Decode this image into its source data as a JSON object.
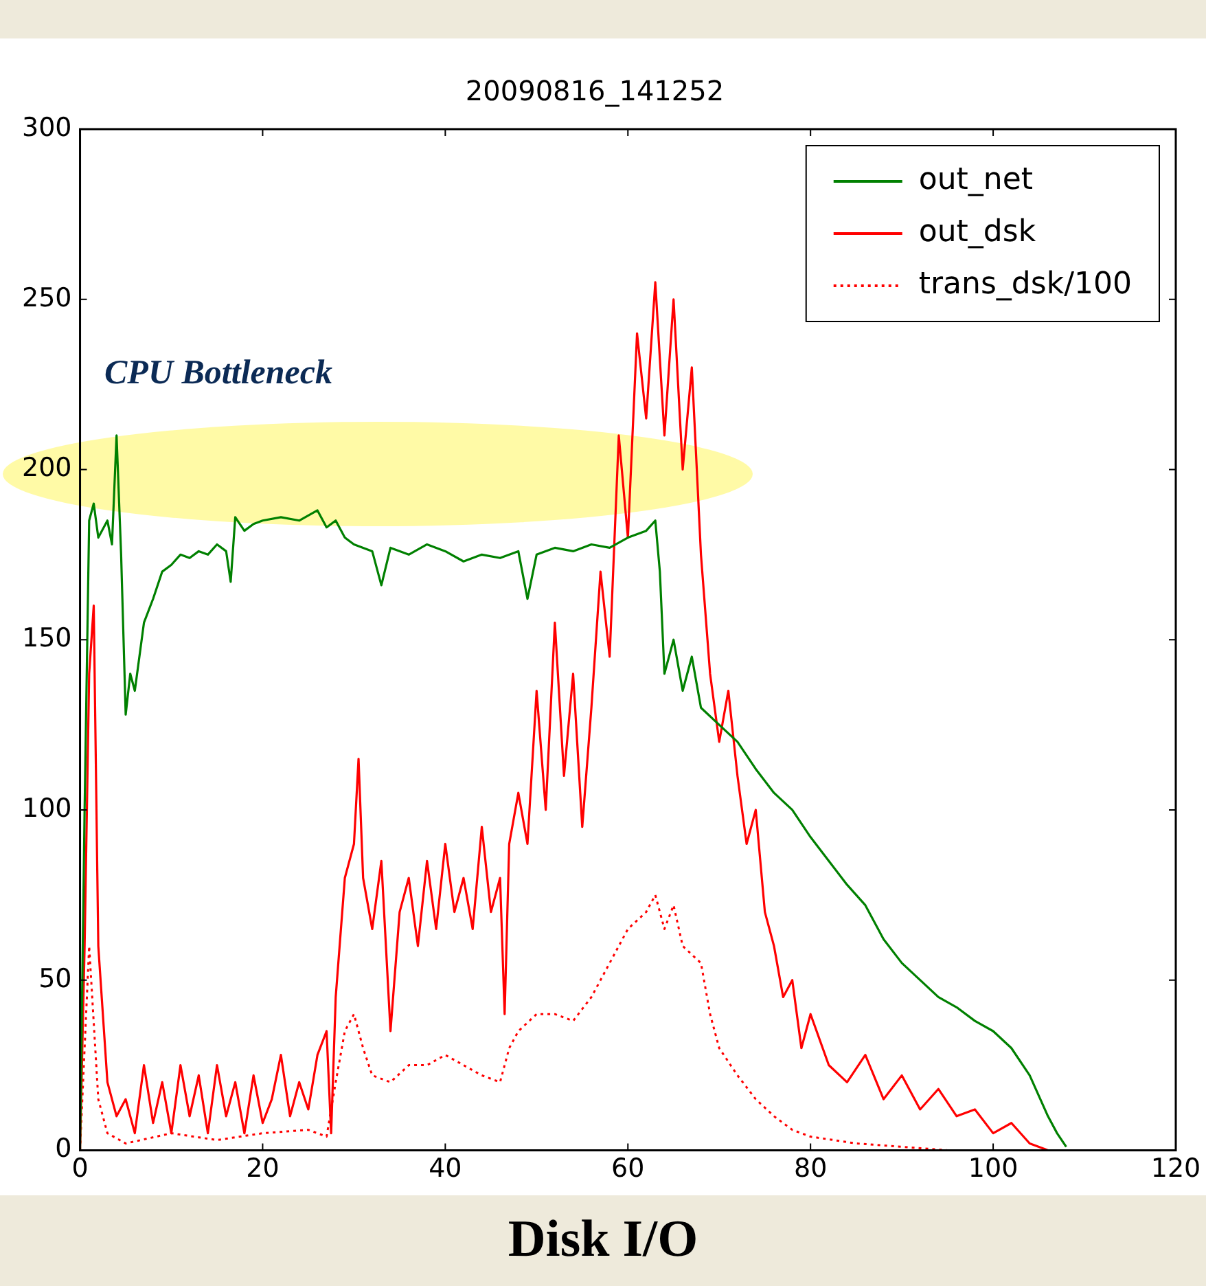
{
  "chart_data": {
    "type": "line",
    "title": "20090816_141252",
    "xlim": [
      0,
      120
    ],
    "xticks": [
      0,
      20,
      40,
      60,
      80,
      100,
      120
    ],
    "ylim": [
      0,
      300
    ],
    "yticks": [
      0,
      50,
      100,
      150,
      200,
      250,
      300
    ],
    "grid": false,
    "legend": "top right",
    "marker": "none",
    "annotations": [
      "CPU Bottleneck",
      "Disk I/O"
    ],
    "series": [
      {
        "name": "out_net",
        "color": "#008000",
        "line_style": "solid",
        "x": [
          0,
          0.5,
          1,
          1.5,
          2,
          3,
          3.5,
          4,
          4.5,
          5,
          5.5,
          6,
          7,
          8,
          9,
          10,
          11,
          12,
          13,
          14,
          15,
          16,
          16.5,
          17,
          18,
          19,
          20,
          22,
          24,
          26,
          27,
          28,
          29,
          30,
          32,
          33,
          34,
          36,
          38,
          40,
          42,
          44,
          46,
          48,
          49,
          50,
          52,
          54,
          56,
          58,
          60,
          62,
          63,
          63.5,
          64,
          65,
          66,
          67,
          68,
          70,
          72,
          74,
          76,
          78,
          80,
          82,
          84,
          86,
          88,
          90,
          92,
          94,
          96,
          98,
          100,
          102,
          104,
          106,
          107,
          108
        ],
        "values": [
          0,
          100,
          185,
          190,
          180,
          185,
          178,
          210,
          175,
          128,
          140,
          135,
          155,
          162,
          170,
          172,
          175,
          174,
          176,
          175,
          178,
          176,
          167,
          186,
          182,
          184,
          185,
          186,
          185,
          188,
          183,
          185,
          180,
          178,
          176,
          166,
          177,
          175,
          178,
          176,
          173,
          175,
          174,
          176,
          162,
          175,
          177,
          176,
          178,
          177,
          180,
          182,
          185,
          170,
          140,
          150,
          135,
          145,
          130,
          125,
          120,
          112,
          105,
          100,
          92,
          85,
          78,
          72,
          62,
          55,
          50,
          45,
          42,
          38,
          35,
          30,
          22,
          10,
          5,
          1
        ]
      },
      {
        "name": "out_dsk",
        "color": "#ff0000",
        "line_style": "solid",
        "x": [
          0,
          0.5,
          1,
          1.5,
          2,
          3,
          4,
          5,
          6,
          7,
          8,
          9,
          10,
          11,
          12,
          13,
          14,
          15,
          16,
          17,
          18,
          19,
          20,
          21,
          22,
          23,
          24,
          25,
          26,
          27,
          27.5,
          28,
          29,
          30,
          30.5,
          31,
          32,
          33,
          34,
          35,
          36,
          37,
          38,
          39,
          40,
          41,
          42,
          43,
          44,
          45,
          46,
          46.5,
          47,
          48,
          49,
          50,
          51,
          52,
          53,
          54,
          55,
          56,
          57,
          58,
          59,
          60,
          61,
          62,
          63,
          64,
          65,
          66,
          67,
          68,
          69,
          70,
          71,
          72,
          73,
          74,
          75,
          76,
          77,
          78,
          79,
          80,
          82,
          84,
          86,
          88,
          90,
          92,
          94,
          96,
          98,
          100,
          102,
          104,
          106
        ],
        "values": [
          0,
          60,
          140,
          160,
          60,
          20,
          10,
          15,
          5,
          25,
          8,
          20,
          5,
          25,
          10,
          22,
          5,
          25,
          10,
          20,
          5,
          22,
          8,
          15,
          28,
          10,
          20,
          12,
          28,
          35,
          5,
          45,
          80,
          90,
          115,
          80,
          65,
          85,
          35,
          70,
          80,
          60,
          85,
          65,
          90,
          70,
          80,
          65,
          95,
          70,
          80,
          40,
          90,
          105,
          90,
          135,
          100,
          155,
          110,
          140,
          95,
          130,
          170,
          145,
          210,
          180,
          240,
          215,
          255,
          210,
          250,
          200,
          230,
          175,
          140,
          120,
          135,
          110,
          90,
          100,
          70,
          60,
          45,
          50,
          30,
          40,
          25,
          20,
          28,
          15,
          22,
          12,
          18,
          10,
          12,
          5,
          8,
          2,
          0
        ]
      },
      {
        "name": "trans_dsk/100",
        "color": "#ff0000",
        "line_style": "dotted",
        "x": [
          0,
          1,
          2,
          3,
          5,
          10,
          15,
          20,
          25,
          27,
          28,
          29,
          30,
          31,
          32,
          34,
          36,
          38,
          40,
          42,
          44,
          46,
          47,
          48,
          50,
          52,
          54,
          56,
          58,
          60,
          62,
          63,
          64,
          65,
          66,
          68,
          69,
          70,
          72,
          74,
          76,
          78,
          80,
          85,
          90,
          95
        ],
        "values": [
          0,
          60,
          15,
          5,
          2,
          5,
          3,
          5,
          6,
          4,
          20,
          35,
          40,
          30,
          22,
          20,
          25,
          25,
          28,
          25,
          22,
          20,
          30,
          35,
          40,
          40,
          38,
          45,
          55,
          65,
          70,
          75,
          65,
          72,
          60,
          55,
          40,
          30,
          22,
          15,
          10,
          6,
          4,
          2,
          1,
          0
        ]
      }
    ]
  }
}
